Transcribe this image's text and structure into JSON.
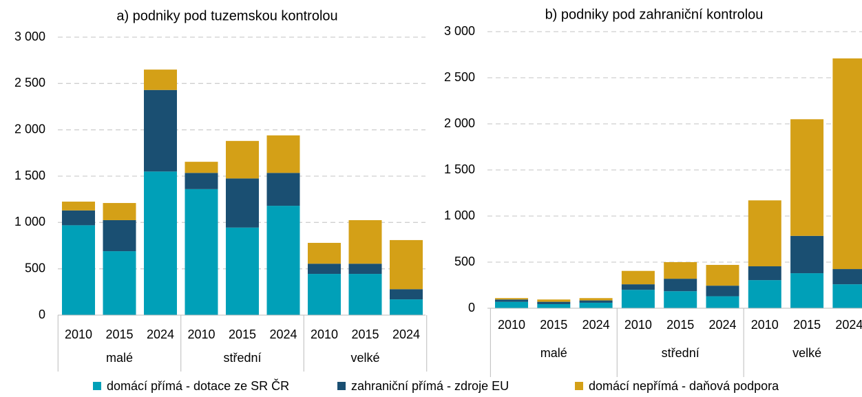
{
  "chart_data": [
    {
      "type": "bar",
      "stacked": true,
      "title": "a) podniky pod tuzemskou kontrolou",
      "categories": [
        "2010",
        "2015",
        "2024",
        "2010",
        "2015",
        "2024",
        "2010",
        "2015",
        "2024"
      ],
      "groups": [
        "malé",
        "střední",
        "velké"
      ],
      "ylim": [
        0,
        3000
      ],
      "yticks": [
        0,
        500,
        {
          "value": 1000,
          "label": "1 000"
        },
        {
          "value": 1500,
          "label": "1 500"
        },
        {
          "value": 2000,
          "label": "2 000"
        },
        {
          "value": 2500,
          "label": "2 500"
        },
        {
          "value": 3000,
          "label": "3 000"
        }
      ],
      "grid": true,
      "series": [
        {
          "name": "domácí přímá - dotace ze SR ČR",
          "color": "#00a0b8",
          "values": [
            970,
            690,
            1550,
            1360,
            945,
            1180,
            445,
            445,
            170
          ]
        },
        {
          "name": "zahraniční přímá - zdroje EU",
          "color": "#1a4f72",
          "values": [
            160,
            335,
            880,
            175,
            530,
            355,
            110,
            110,
            110
          ]
        },
        {
          "name": "domácí nepřímá - daňová podpora",
          "color": "#d4a017",
          "values": [
            95,
            185,
            220,
            120,
            405,
            405,
            225,
            470,
            530
          ]
        }
      ]
    },
    {
      "type": "bar",
      "stacked": true,
      "title": "b) podniky pod zahraniční kontrolou",
      "categories": [
        "2010",
        "2015",
        "2024",
        "2010",
        "2015",
        "2024",
        "2010",
        "2015",
        "2024"
      ],
      "groups": [
        "malé",
        "střední",
        "velké"
      ],
      "ylim": [
        0,
        3000
      ],
      "yticks": [
        0,
        500,
        {
          "value": 1000,
          "label": "1 000"
        },
        {
          "value": 1500,
          "label": "1 500"
        },
        {
          "value": 2000,
          "label": "2 000"
        },
        {
          "value": 2500,
          "label": "2 500"
        },
        {
          "value": 3000,
          "label": "3 000"
        }
      ],
      "grid": true,
      "series": [
        {
          "color": "#00a0b8",
          "values": [
            70,
            45,
            60,
            200,
            185,
            130,
            305,
            380,
            260
          ]
        },
        {
          "color": "#1a4f72",
          "values": [
            25,
            25,
            25,
            60,
            135,
            115,
            150,
            405,
            165
          ]
        },
        {
          "color": "#d4a017",
          "values": [
            15,
            25,
            25,
            145,
            180,
            225,
            715,
            1265,
            2285
          ]
        }
      ]
    }
  ]
}
